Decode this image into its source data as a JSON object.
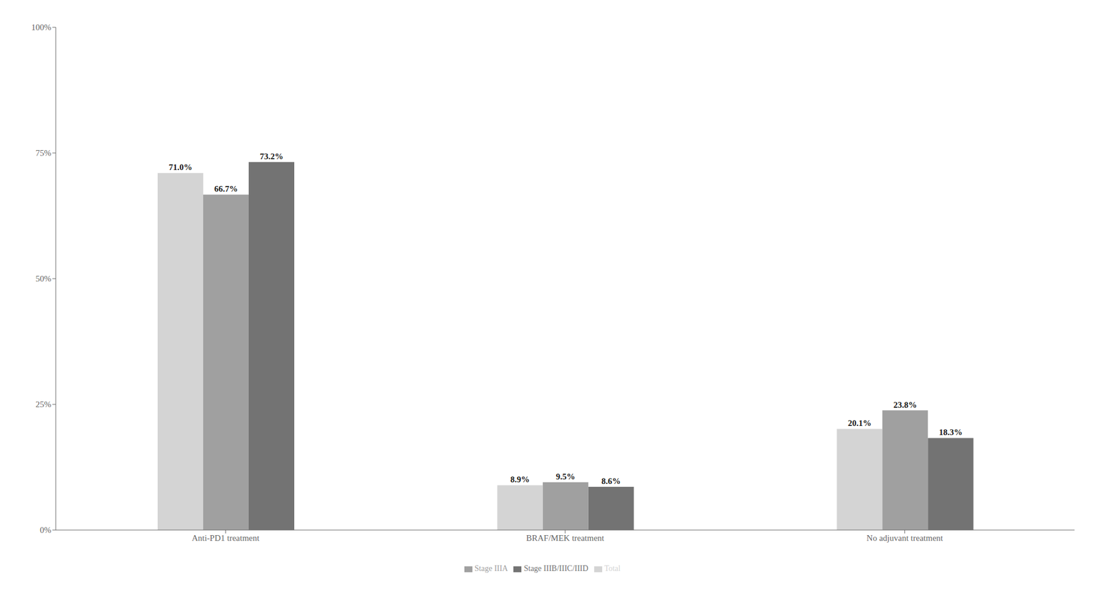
{
  "chart_data": {
    "type": "bar",
    "categories": [
      "Anti-PD1 treatment",
      "BRAF/MEK treatment",
      "No adjuvant treatment"
    ],
    "series": [
      {
        "name": "Total",
        "color": "#d4d4d4",
        "values": [
          71.0,
          8.9,
          20.1
        ],
        "value_labels": [
          "71.0%",
          "8.9%",
          "20.1%"
        ]
      },
      {
        "name": "Stage IIIA",
        "color": "#a0a0a0",
        "values": [
          66.7,
          9.5,
          23.8
        ],
        "value_labels": [
          "66.7%",
          "9.5%",
          "23.8%"
        ]
      },
      {
        "name": "Stage IIIB/IIIC/IIID",
        "color": "#737373",
        "values": [
          73.2,
          8.6,
          18.3
        ],
        "value_labels": [
          "73.2%",
          "8.6%",
          "18.3%"
        ]
      }
    ],
    "ylim": [
      0,
      100
    ],
    "yticks": [
      {
        "value": 0,
        "label": "0%"
      },
      {
        "value": 25,
        "label": "25%"
      },
      {
        "value": 50,
        "label": "50%"
      },
      {
        "value": 75,
        "label": "75%"
      },
      {
        "value": 100,
        "label": "100%"
      }
    ],
    "grid": false,
    "legend": "bottom",
    "data_labels": true
  }
}
